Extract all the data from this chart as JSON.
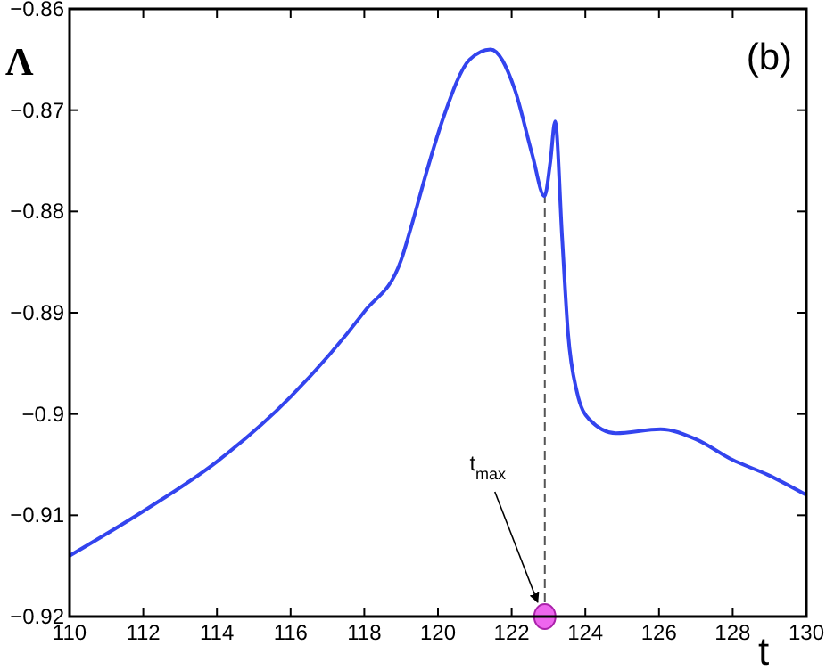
{
  "chart_data": {
    "type": "line",
    "xlabel": "t",
    "ylabel": "Λ",
    "annotations": [
      "(b)",
      {
        "text": "t$_{max}$",
        "x": 122.9,
        "y": -0.92
      }
    ],
    "xlim": [
      110,
      130
    ],
    "xticks": [
      110,
      112,
      114,
      116,
      118,
      120,
      122,
      124,
      126,
      128,
      130
    ],
    "ylim": [
      -0.92,
      -0.86
    ],
    "yticks": [
      {
        "value": -0.92,
        "label": "−0.92"
      },
      {
        "value": -0.91,
        "label": "−0.91"
      },
      {
        "value": -0.9,
        "label": "−0.9"
      },
      {
        "value": -0.89,
        "label": "−0.89"
      },
      {
        "value": -0.88,
        "label": "−0.88"
      },
      {
        "value": -0.87,
        "label": "−0.87"
      },
      {
        "value": -0.86,
        "label": "−0.86"
      }
    ],
    "grid": false,
    "marker": "none",
    "line_style": "solid",
    "ref_lines": [
      {
        "axis": "x",
        "value": 122.9,
        "line_style": "dashed",
        "color": "#555555"
      }
    ],
    "series": [
      {
        "color": "#3344ee",
        "x": [
          110,
          112,
          114,
          116,
          118,
          119,
          119.25,
          119.73,
          120.14,
          120.86,
          121.43,
          122.08,
          122.56,
          122.89,
          123.05,
          123.18,
          123.37,
          123.53,
          123.77,
          124.1,
          124.83,
          126.04,
          127.01,
          127.98,
          128.95,
          130
        ],
        "values": [
          -0.914,
          -0.9096,
          -0.9047,
          -0.8983,
          -0.8899,
          -0.8848,
          -0.8818,
          -0.8756,
          -0.8708,
          -0.865,
          -0.864,
          -0.8679,
          -0.8744,
          -0.8785,
          -0.8751,
          -0.8711,
          -0.8826,
          -0.892,
          -0.8978,
          -0.9005,
          -0.9019,
          -0.9015,
          -0.9025,
          -0.9045,
          -0.906,
          -0.908
        ]
      },
      {
        "type": "scatter",
        "color": "#ee66ee",
        "marker": "circle",
        "x": [
          122.9
        ],
        "values": [
          -0.92
        ]
      }
    ]
  }
}
